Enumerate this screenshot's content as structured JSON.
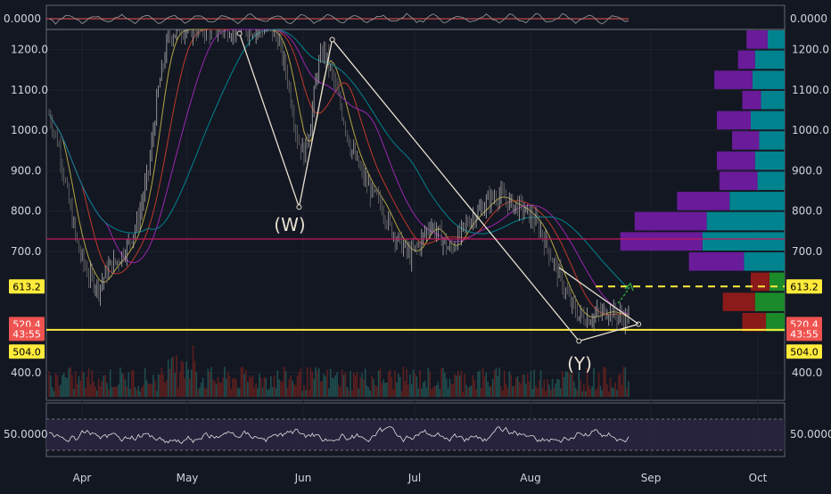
{
  "colors": {
    "background": "#131722",
    "pane_border": "#787b86",
    "grid": "#1e2230",
    "axis_text": "#d1d4dc",
    "candle_up": "#b0b0b0",
    "candle_down": "#6a6a6a",
    "ma_fast": "#b5a642",
    "ma_red": "#c0392b",
    "ma_purple": "#9b27b0",
    "ma_teal": "#00838f",
    "pattern": "#e8e0d0",
    "support": "#ffeb3b",
    "resistance": "#c2185b",
    "vp_up": "#00838f",
    "vp_down": "#6a1b9a",
    "vp_up_highlight": "#1b8a2a",
    "vp_down_highlight": "#8b1a1a",
    "volume_up": "#1f4d4d",
    "volume_down": "#5b1f1f",
    "rsi_band": "#2a2540",
    "rsi_line": "#e0e0e0",
    "label_yellow": "#ffeb3b",
    "label_red": "#ef5350",
    "arrow": "#2e9e3e"
  },
  "top_pane": {
    "left_label": "0.0000",
    "right_label": "0.0000"
  },
  "chart_data": {
    "type": "candlestick",
    "y_axis": {
      "ticks": [
        "1200.0",
        "1100.0",
        "1000.0",
        "900.0",
        "800.0",
        "700.0",
        "400.0"
      ],
      "range": [
        340,
        1250
      ]
    },
    "x_axis": {
      "ticks": [
        "Apr",
        "May",
        "Jun",
        "Jul",
        "Aug",
        "Sep",
        "Oct"
      ]
    },
    "price_path": [
      [
        0,
        1040
      ],
      [
        6,
        960
      ],
      [
        12,
        820
      ],
      [
        18,
        700
      ],
      [
        24,
        640
      ],
      [
        30,
        610
      ],
      [
        36,
        660
      ],
      [
        42,
        680
      ],
      [
        48,
        720
      ],
      [
        54,
        780
      ],
      [
        60,
        900
      ],
      [
        66,
        1100
      ],
      [
        72,
        1230
      ],
      [
        78,
        1250
      ],
      [
        84,
        1250
      ],
      [
        90,
        1250
      ],
      [
        96,
        1250
      ],
      [
        102,
        1250
      ],
      [
        108,
        1250
      ],
      [
        114,
        1250
      ],
      [
        120,
        1250
      ],
      [
        126,
        1250
      ],
      [
        132,
        1250
      ],
      [
        138,
        1230
      ],
      [
        144,
        1130
      ],
      [
        150,
        980
      ],
      [
        154,
        940
      ],
      [
        158,
        1020
      ],
      [
        162,
        1150
      ],
      [
        166,
        1200
      ],
      [
        170,
        1150
      ],
      [
        176,
        1060
      ],
      [
        182,
        960
      ],
      [
        188,
        900
      ],
      [
        194,
        850
      ],
      [
        200,
        820
      ],
      [
        206,
        760
      ],
      [
        212,
        720
      ],
      [
        218,
        690
      ],
      [
        224,
        720
      ],
      [
        230,
        770
      ],
      [
        236,
        740
      ],
      [
        242,
        700
      ],
      [
        248,
        740
      ],
      [
        254,
        780
      ],
      [
        260,
        800
      ],
      [
        266,
        830
      ],
      [
        272,
        840
      ],
      [
        278,
        820
      ],
      [
        284,
        810
      ],
      [
        290,
        790
      ],
      [
        296,
        760
      ],
      [
        302,
        700
      ],
      [
        308,
        640
      ],
      [
        314,
        580
      ],
      [
        320,
        540
      ],
      [
        326,
        535
      ],
      [
        332,
        545
      ],
      [
        338,
        555
      ],
      [
        344,
        540
      ],
      [
        350,
        532
      ]
    ],
    "patterns": [
      {
        "label": "(W)",
        "points": [
          [
            115,
            1240
          ],
          [
            151,
            810
          ],
          [
            171,
            1225
          ]
        ]
      },
      {
        "label": "(Y)",
        "points": [
          [
            171,
            1225
          ],
          [
            320,
            478
          ],
          [
            356,
            520
          ]
        ]
      }
    ],
    "levels": [
      {
        "price": 731,
        "style": "solid",
        "color": "resistance"
      },
      {
        "price": 613.2,
        "style": "dashed",
        "color": "support"
      },
      {
        "price": 504.0,
        "style": "solid",
        "color": "support"
      }
    ],
    "price_labels": [
      {
        "text": "613.2",
        "price": 613.2,
        "bg": "yellow"
      },
      {
        "text": "520.4",
        "price": 520.4,
        "bg": "red"
      },
      {
        "text": "43:55",
        "price": 496,
        "bg": "red"
      },
      {
        "text": "504.0",
        "price": 452,
        "bg": "yellow"
      }
    ],
    "volume_profile": [
      {
        "price": 1225,
        "up": 20,
        "down": 25
      },
      {
        "price": 1175,
        "up": 35,
        "down": 20
      },
      {
        "price": 1125,
        "up": 38,
        "down": 45
      },
      {
        "price": 1075,
        "up": 28,
        "down": 22
      },
      {
        "price": 1025,
        "up": 40,
        "down": 40
      },
      {
        "price": 975,
        "up": 30,
        "down": 32
      },
      {
        "price": 925,
        "up": 35,
        "down": 45
      },
      {
        "price": 875,
        "up": 32,
        "down": 45
      },
      {
        "price": 825,
        "up": 65,
        "down": 62
      },
      {
        "price": 775,
        "up": 92,
        "down": 85
      },
      {
        "price": 725,
        "up": 97,
        "down": 97
      },
      {
        "price": 675,
        "up": 48,
        "down": 65
      },
      {
        "price": 625,
        "up": 18,
        "down": 22,
        "highlight": true
      },
      {
        "price": 575,
        "up": 35,
        "down": 38,
        "highlight": true
      },
      {
        "price": 525,
        "up": 22,
        "down": 28,
        "highlight": true
      }
    ],
    "rsi": {
      "right_label": "50.0000",
      "left_label": "50.0000"
    }
  }
}
